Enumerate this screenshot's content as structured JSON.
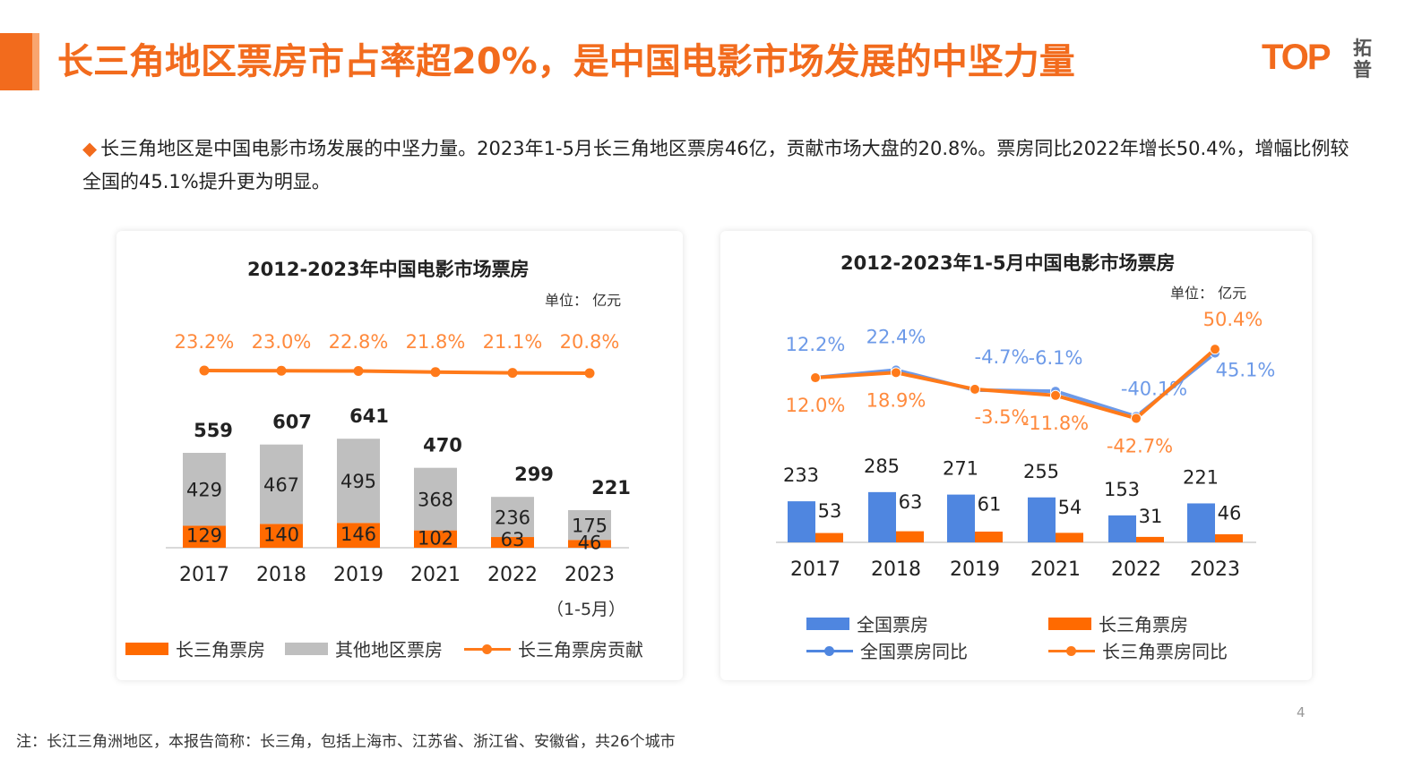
{
  "header": {
    "title": "长三角地区票房市占率超20%，是中国电影市场发展的中坚力量",
    "logo_text": "TOP",
    "logo_cn": "拓普"
  },
  "bullet": {
    "icon": "diamond-icon",
    "text": "长三角地区是中国电影市场发展的中坚力量。2023年1-5月长三角地区票房46亿，贡献市场大盘的20.8%。票房同比2022年增长50.4%，增幅比例较全国的45.1%提升更为明显。"
  },
  "colors": {
    "accent": "#f26b1d",
    "orange": "#ff6a00",
    "gray": "#bfbfbf",
    "blue": "#4f86e0",
    "line_orange": "#ff7a1a"
  },
  "chart_data": [
    {
      "type": "bar",
      "stacked": true,
      "title": "2012-2023年中国电影市场票房",
      "unit": "单位： 亿元",
      "categories": [
        "2017",
        "2018",
        "2019",
        "2021",
        "2022",
        "2023"
      ],
      "category_note": "（1-5月）",
      "totals": [
        559,
        607,
        641,
        470,
        299,
        221
      ],
      "series": [
        {
          "name": "长三角票房",
          "type": "bar",
          "color": "#ff6a00",
          "values": [
            129,
            140,
            146,
            102,
            63,
            46
          ]
        },
        {
          "name": "其他地区票房",
          "type": "bar",
          "color": "#bfbfbf",
          "values": [
            429,
            467,
            495,
            368,
            236,
            175
          ]
        },
        {
          "name": "长三角票房贡献",
          "type": "line",
          "color": "#ff7a1a",
          "values": [
            23.2,
            23.0,
            22.8,
            21.8,
            21.1,
            20.8
          ],
          "labels": [
            "23.2%",
            "23.0%",
            "22.8%",
            "21.8%",
            "21.1%",
            "20.8%"
          ]
        }
      ],
      "legend": "bottom"
    },
    {
      "type": "bar",
      "title": "2012-2023年1-5月中国电影市场票房",
      "unit": "单位： 亿元",
      "categories": [
        "2017",
        "2018",
        "2019",
        "2021",
        "2022",
        "2023"
      ],
      "series": [
        {
          "name": "全国票房",
          "type": "bar",
          "color": "#4f86e0",
          "values": [
            233,
            285,
            271,
            255,
            153,
            221
          ]
        },
        {
          "name": "长三角票房",
          "type": "bar",
          "color": "#ff6a00",
          "values": [
            53,
            63,
            61,
            54,
            31,
            46
          ]
        },
        {
          "name": "全国票房同比",
          "type": "line",
          "color": "#6d9ae8",
          "values": [
            12.2,
            22.4,
            -4.7,
            -6.1,
            -40.1,
            45.1
          ],
          "labels": [
            "12.2%",
            "22.4%",
            "-4.7%",
            "-6.1%",
            "-40.1%",
            "45.1%"
          ]
        },
        {
          "name": "长三角票房同比",
          "type": "line",
          "color": "#ff7a1a",
          "values": [
            12.0,
            18.9,
            -3.5,
            -11.8,
            -42.7,
            50.4
          ],
          "labels": [
            "12.0%",
            "18.9%",
            "-3.5%",
            "-11.8%",
            "-42.7%",
            "50.4%"
          ]
        }
      ],
      "legend": "bottom"
    }
  ],
  "footer": {
    "note": "注：长江三角洲地区，本报告简称：长三角，包括上海市、江苏省、浙江省、安徽省，共26个城市",
    "page_number": "4"
  }
}
